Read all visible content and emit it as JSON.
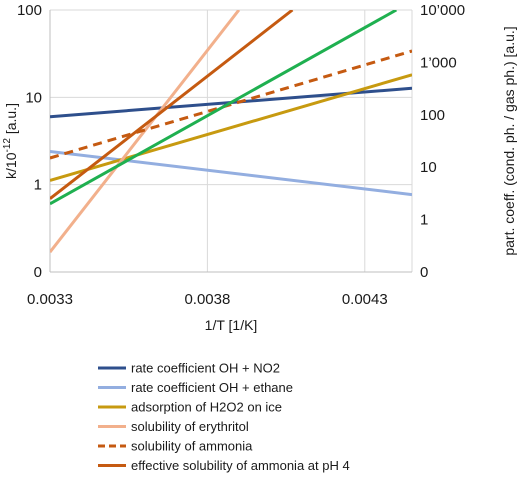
{
  "chart_data": {
    "type": "line",
    "x_axis": {
      "label": "1/T [1/K]",
      "range": [
        0.00335,
        0.0045
      ],
      "ticks": [
        "0.0033",
        "0.0038",
        "0.0043"
      ],
      "tick_values": [
        0.00335,
        0.00385,
        0.00435
      ]
    },
    "y_left": {
      "label_main": "k/10",
      "label_sup": "-12",
      "label_unit": " [a.u.]",
      "scale": "log",
      "range": [
        0.1,
        100
      ],
      "ticks": [
        "0",
        "1",
        "10",
        "100"
      ],
      "tick_values": [
        0.1,
        1,
        10,
        100
      ]
    },
    "y_right": {
      "label": "part. coeff. (cond. ph. / gas ph.) [a.u.]",
      "scale": "log",
      "range": [
        0.1,
        10000
      ],
      "ticks": [
        "0",
        "1",
        "10",
        "100",
        "1’000",
        "10’000"
      ],
      "tick_values": [
        0.1,
        1,
        10,
        100,
        1000,
        10000
      ]
    },
    "grid": true,
    "legend_position": "bottom",
    "series": [
      {
        "name": "rate coefficient OH + NO2",
        "axis": "left",
        "color": "#2e4f8c",
        "dashed": false,
        "points": [
          [
            0.00335,
            6.0
          ],
          [
            0.0045,
            12.7
          ]
        ]
      },
      {
        "name": "rate coefficient OH + ethane",
        "axis": "left",
        "color": "#93aee0",
        "dashed": false,
        "points": [
          [
            0.00335,
            2.4
          ],
          [
            0.0045,
            0.77
          ]
        ]
      },
      {
        "name": "adsorption of H2O2 on ice",
        "axis": "right",
        "color": "#c79a10",
        "dashed": false,
        "points": [
          [
            0.00335,
            5.6
          ],
          [
            0.0045,
            580
          ]
        ]
      },
      {
        "name": "solubility of erythritol",
        "axis": "right",
        "color": "#f2b08c",
        "dashed": false,
        "points": [
          [
            0.00335,
            0.24
          ],
          [
            0.00395,
            10000
          ]
        ]
      },
      {
        "name": "solubility of ammonia",
        "axis": "right",
        "color": "#c55a11",
        "dashed": true,
        "points": [
          [
            0.00335,
            15
          ],
          [
            0.0045,
            1650
          ]
        ]
      },
      {
        "name": "effective solubility of ammonia at pH 4",
        "axis": "right",
        "color": "#c55a11",
        "dashed": false,
        "points": [
          [
            0.00335,
            2.5
          ],
          [
            0.00412,
            10000
          ]
        ]
      },
      {
        "name": "",
        "axis": "right",
        "color": "#1fb050",
        "dashed": false,
        "points": [
          [
            0.00335,
            2.0
          ],
          [
            0.00445,
            10000
          ]
        ]
      }
    ]
  }
}
